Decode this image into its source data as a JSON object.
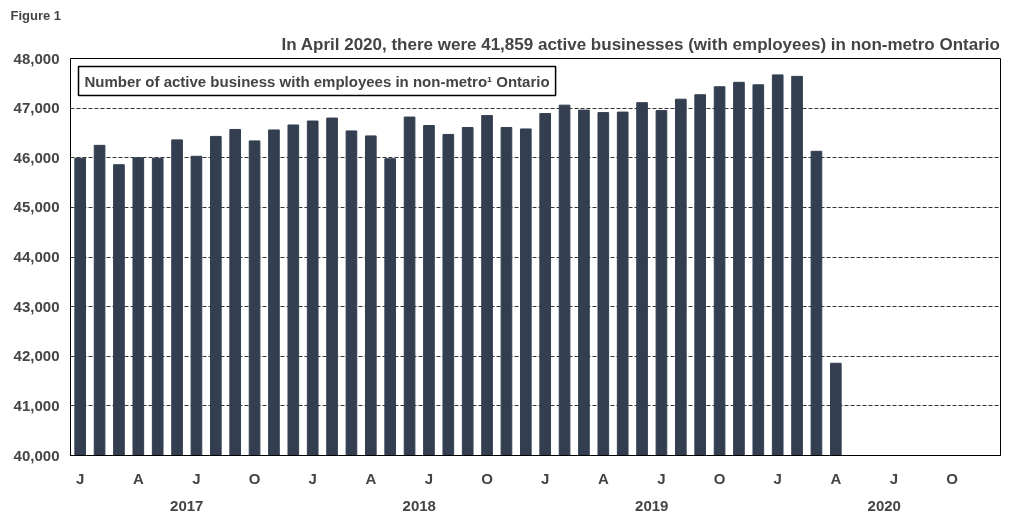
{
  "chart_data": {
    "type": "bar",
    "title": "In April 2020, there were 41,859 active businesses (with employees) in non-metro Ontario",
    "subtitle": "Number of active business with employees in non-metro¹ Ontario",
    "annotations": [
      "Figure 1",
      "2017",
      "2018",
      "2019",
      "2020"
    ],
    "categories": [
      "J",
      null,
      null,
      "A",
      null,
      null,
      "J",
      null,
      null,
      "O",
      null,
      null,
      "J",
      null,
      null,
      "A",
      null,
      null,
      "J",
      null,
      null,
      "O",
      null,
      null,
      "J",
      null,
      null,
      "A",
      null,
      null,
      "J",
      null,
      null,
      "O",
      null,
      null,
      "J",
      null,
      null,
      "A",
      null,
      null,
      "J",
      null,
      null,
      "O",
      null,
      null
    ],
    "values": [
      45990,
      46250,
      45860,
      46000,
      45990,
      46360,
      46030,
      46430,
      46570,
      46340,
      46560,
      46660,
      46740,
      46800,
      46540,
      46440,
      45980,
      46820,
      46650,
      46470,
      46610,
      46850,
      46610,
      46580,
      46890,
      47060,
      46960,
      46910,
      46920,
      47110,
      46950,
      47180,
      47270,
      47430,
      47520,
      47470,
      47670,
      47640,
      46130,
      41859,
      null,
      null,
      null,
      null,
      null,
      null,
      null,
      null
    ],
    "color": "#333f50",
    "ylim": [
      40000,
      48000
    ],
    "yticks": [
      {
        "value": 40000,
        "label": "40,000"
      },
      {
        "value": 41000,
        "label": "41,000"
      },
      {
        "value": 42000,
        "label": "42,000"
      },
      {
        "value": 43000,
        "label": "43,000"
      },
      {
        "value": 44000,
        "label": "44,000"
      },
      {
        "value": 45000,
        "label": "45,000"
      },
      {
        "value": 46000,
        "label": "46,000"
      },
      {
        "value": 47000,
        "label": "47,000"
      },
      {
        "value": 48000,
        "label": "48,000"
      }
    ],
    "grid": "y",
    "line_style": "dashed"
  }
}
